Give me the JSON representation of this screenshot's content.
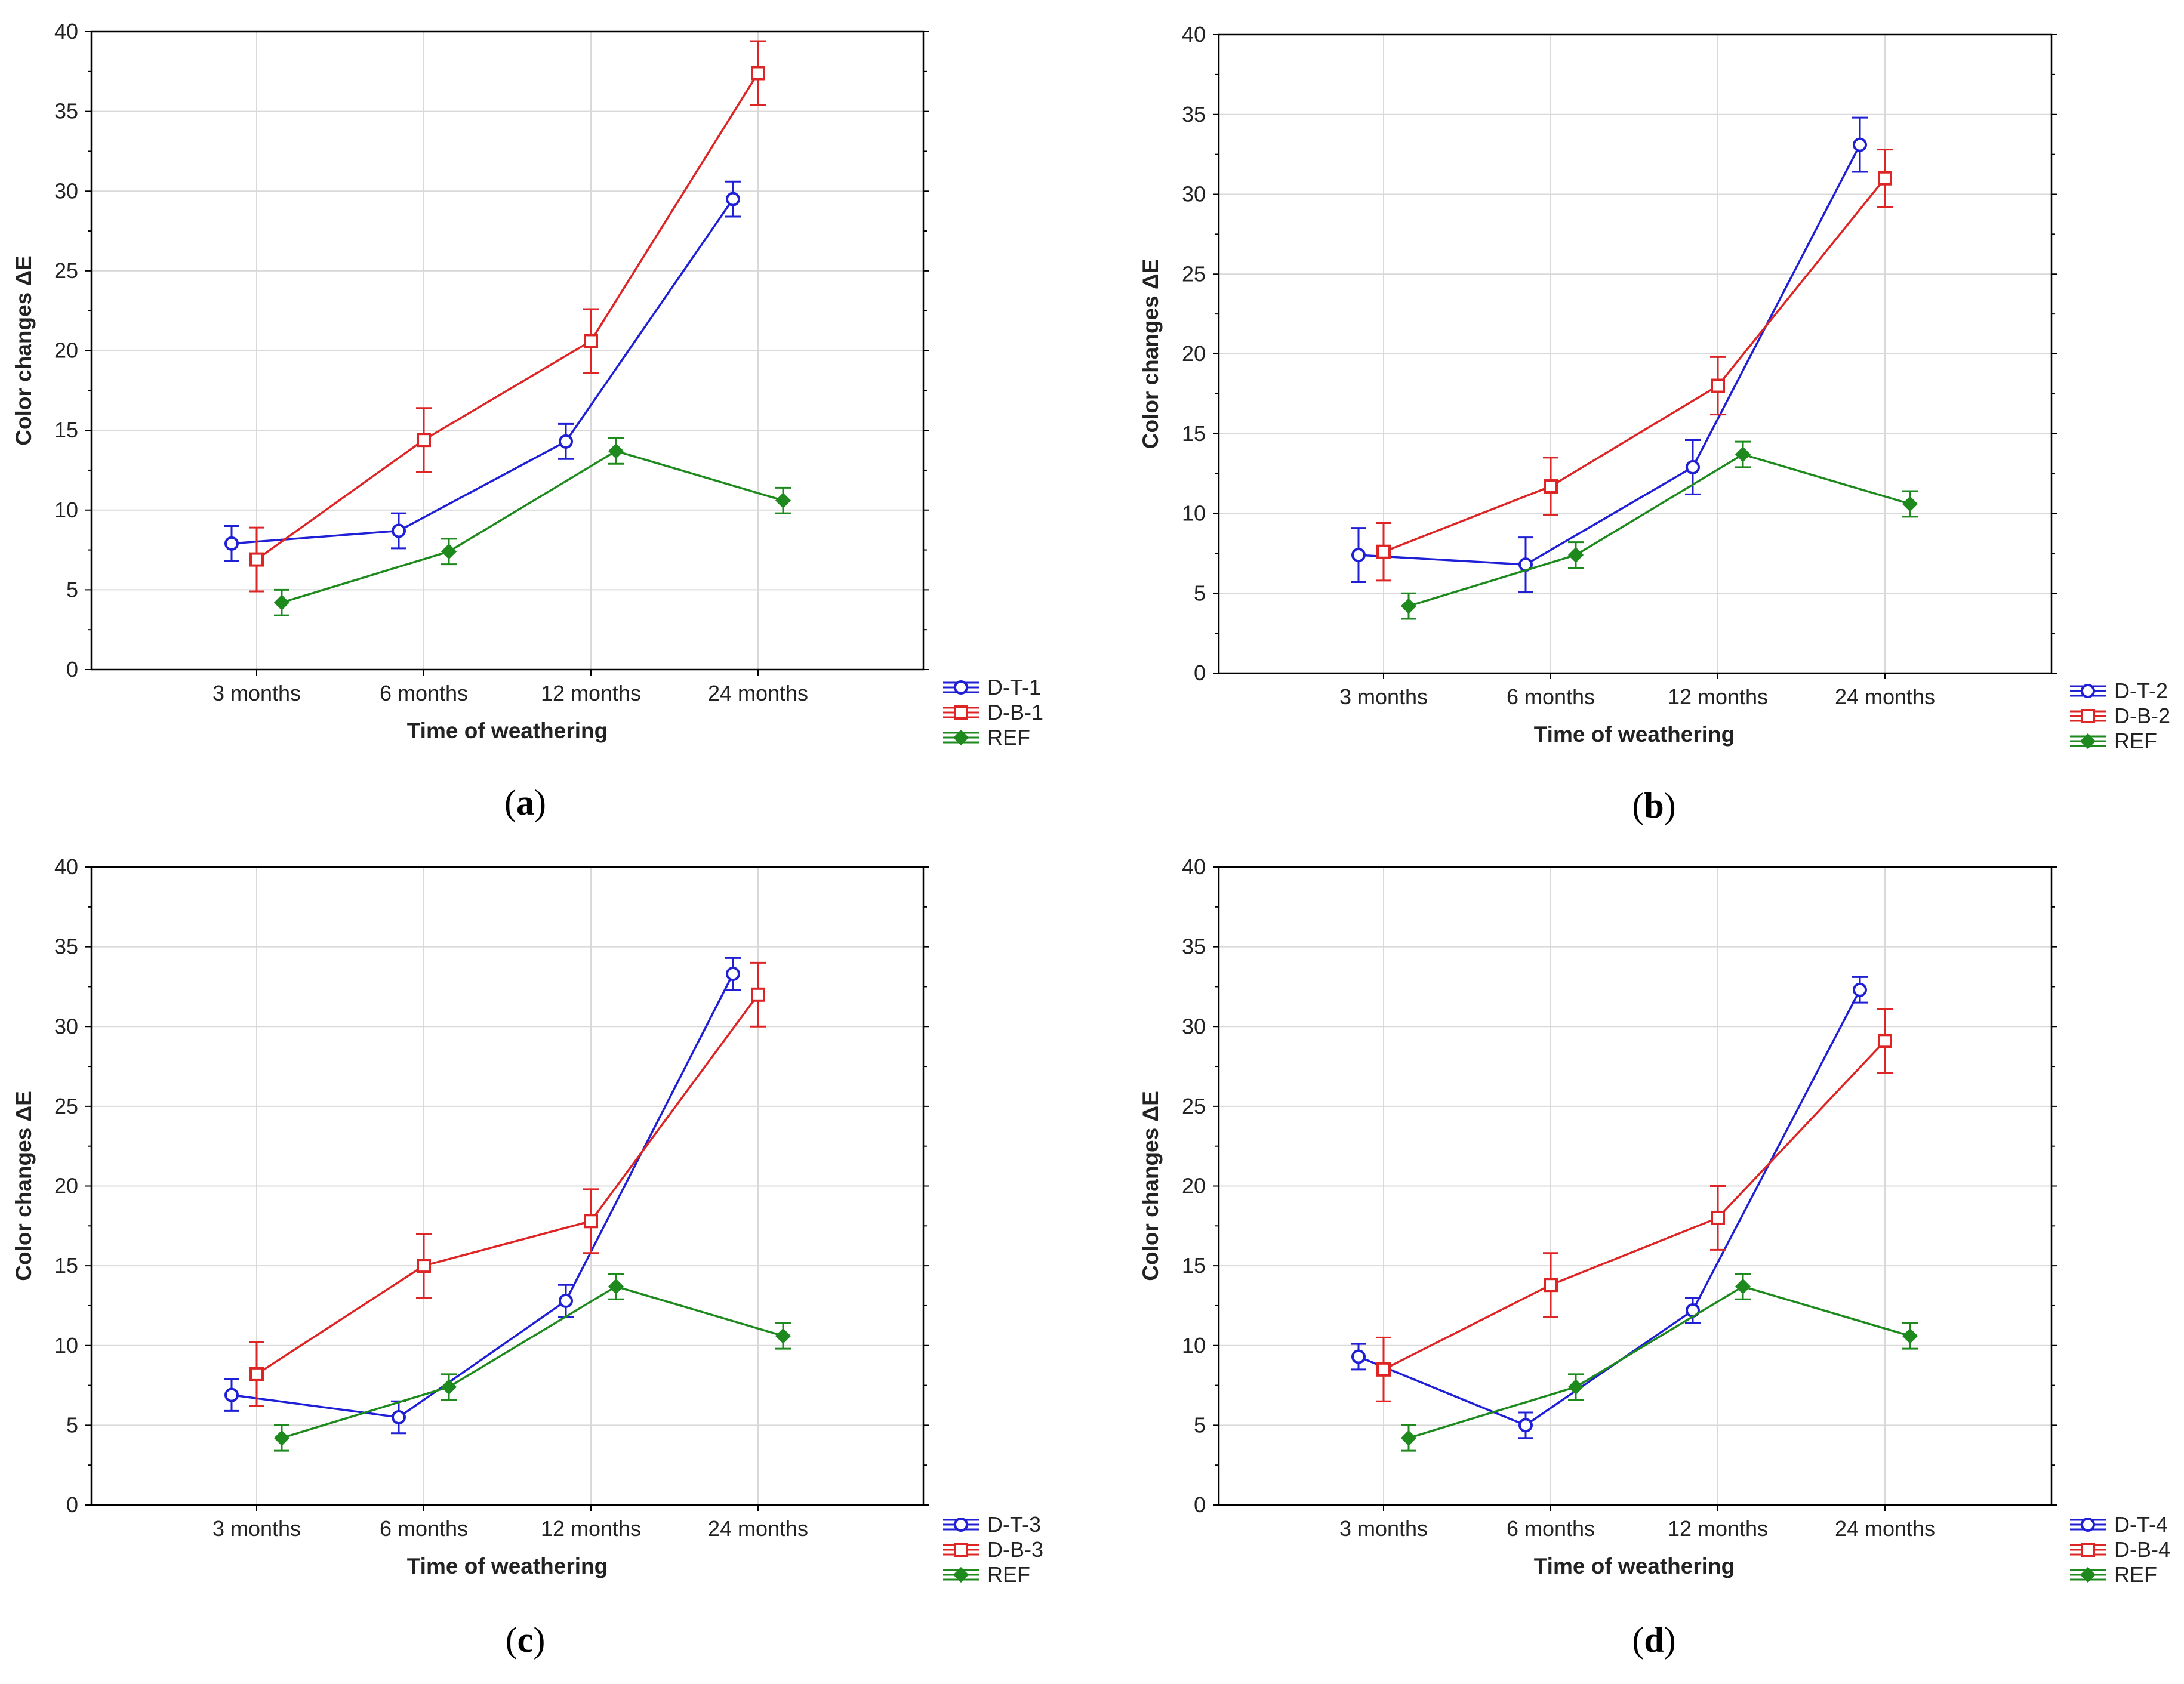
{
  "colors": {
    "blue": "#1f1fd6",
    "red": "#dd2525",
    "green": "#1e8a1e",
    "grid": "#d9d9d9",
    "frame": "#000000"
  },
  "chart_data": [
    {
      "type": "line",
      "panel_label": "a",
      "xlabel": "Time of weathering",
      "ylabel": "Color changes ΔE",
      "ylim": [
        0,
        40
      ],
      "yticks": [
        "0",
        "5",
        "10",
        "15",
        "20",
        "25",
        "30",
        "35",
        "40"
      ],
      "categories": [
        "3 months",
        "6 months",
        "12 months",
        "24 months"
      ],
      "grid": true,
      "legend_position": "below-right",
      "series": [
        {
          "name": "D-T-1",
          "color": "blue",
          "marker": "circle",
          "values": [
            7.9,
            8.7,
            14.3,
            29.5
          ],
          "errors": [
            1.1,
            1.1,
            1.1,
            1.1
          ]
        },
        {
          "name": "D-B-1",
          "color": "red",
          "marker": "square",
          "values": [
            6.9,
            14.4,
            20.6,
            37.4
          ],
          "errors": [
            2.0,
            2.0,
            2.0,
            2.0
          ]
        },
        {
          "name": "REF",
          "color": "green",
          "marker": "diamond",
          "values": [
            4.2,
            7.4,
            13.7,
            10.6
          ],
          "errors": [
            0.8,
            0.8,
            0.8,
            0.8
          ]
        }
      ]
    },
    {
      "type": "line",
      "panel_label": "b",
      "xlabel": "Time of weathering",
      "ylabel": "Color changes ΔE",
      "ylim": [
        0,
        40
      ],
      "yticks": [
        "0",
        "5",
        "10",
        "15",
        "20",
        "25",
        "30",
        "35",
        "40"
      ],
      "categories": [
        "3 months",
        "6 months",
        "12 months",
        "24 months"
      ],
      "grid": true,
      "legend_position": "below-right",
      "series": [
        {
          "name": "D-T-2",
          "color": "blue",
          "marker": "circle",
          "values": [
            7.4,
            6.8,
            12.9,
            33.1
          ],
          "errors": [
            1.7,
            1.7,
            1.7,
            1.7
          ]
        },
        {
          "name": "D-B-2",
          "color": "red",
          "marker": "square",
          "values": [
            7.6,
            11.7,
            18.0,
            31.0
          ],
          "errors": [
            1.8,
            1.8,
            1.8,
            1.8
          ]
        },
        {
          "name": "REF",
          "color": "green",
          "marker": "diamond",
          "values": [
            4.2,
            7.4,
            13.7,
            10.6
          ],
          "errors": [
            0.8,
            0.8,
            0.8,
            0.8
          ]
        }
      ]
    },
    {
      "type": "line",
      "panel_label": "c",
      "xlabel": "Time of weathering",
      "ylabel": "Color changes ΔE",
      "ylim": [
        0,
        40
      ],
      "yticks": [
        "0",
        "5",
        "10",
        "15",
        "20",
        "25",
        "30",
        "35",
        "40"
      ],
      "categories": [
        "3 months",
        "6 months",
        "12 months",
        "24 months"
      ],
      "grid": true,
      "legend_position": "below-right",
      "series": [
        {
          "name": "D-T-3",
          "color": "blue",
          "marker": "circle",
          "values": [
            6.9,
            5.5,
            12.8,
            33.3
          ],
          "errors": [
            1.0,
            1.0,
            1.0,
            1.0
          ]
        },
        {
          "name": "D-B-3",
          "color": "red",
          "marker": "square",
          "values": [
            8.2,
            15.0,
            17.8,
            32.0
          ],
          "errors": [
            2.0,
            2.0,
            2.0,
            2.0
          ]
        },
        {
          "name": "REF",
          "color": "green",
          "marker": "diamond",
          "values": [
            4.2,
            7.4,
            13.7,
            10.6
          ],
          "errors": [
            0.8,
            0.8,
            0.8,
            0.8
          ]
        }
      ]
    },
    {
      "type": "line",
      "panel_label": "d",
      "xlabel": "Time of weathering",
      "ylabel": "Color changes ΔE",
      "ylim": [
        0,
        40
      ],
      "yticks": [
        "0",
        "5",
        "10",
        "15",
        "20",
        "25",
        "30",
        "35",
        "40"
      ],
      "categories": [
        "3 months",
        "6 months",
        "12 months",
        "24 months"
      ],
      "grid": true,
      "legend_position": "below-right",
      "series": [
        {
          "name": "D-T-4",
          "color": "blue",
          "marker": "circle",
          "values": [
            9.3,
            5.0,
            12.2,
            32.3
          ],
          "errors": [
            0.8,
            0.8,
            0.8,
            0.8
          ]
        },
        {
          "name": "D-B-4",
          "color": "red",
          "marker": "square",
          "values": [
            8.5,
            13.8,
            18.0,
            29.1
          ],
          "errors": [
            2.0,
            2.0,
            2.0,
            2.0
          ]
        },
        {
          "name": "REF",
          "color": "green",
          "marker": "diamond",
          "values": [
            4.2,
            7.4,
            13.7,
            10.6
          ],
          "errors": [
            0.8,
            0.8,
            0.8,
            0.8
          ]
        }
      ]
    }
  ]
}
